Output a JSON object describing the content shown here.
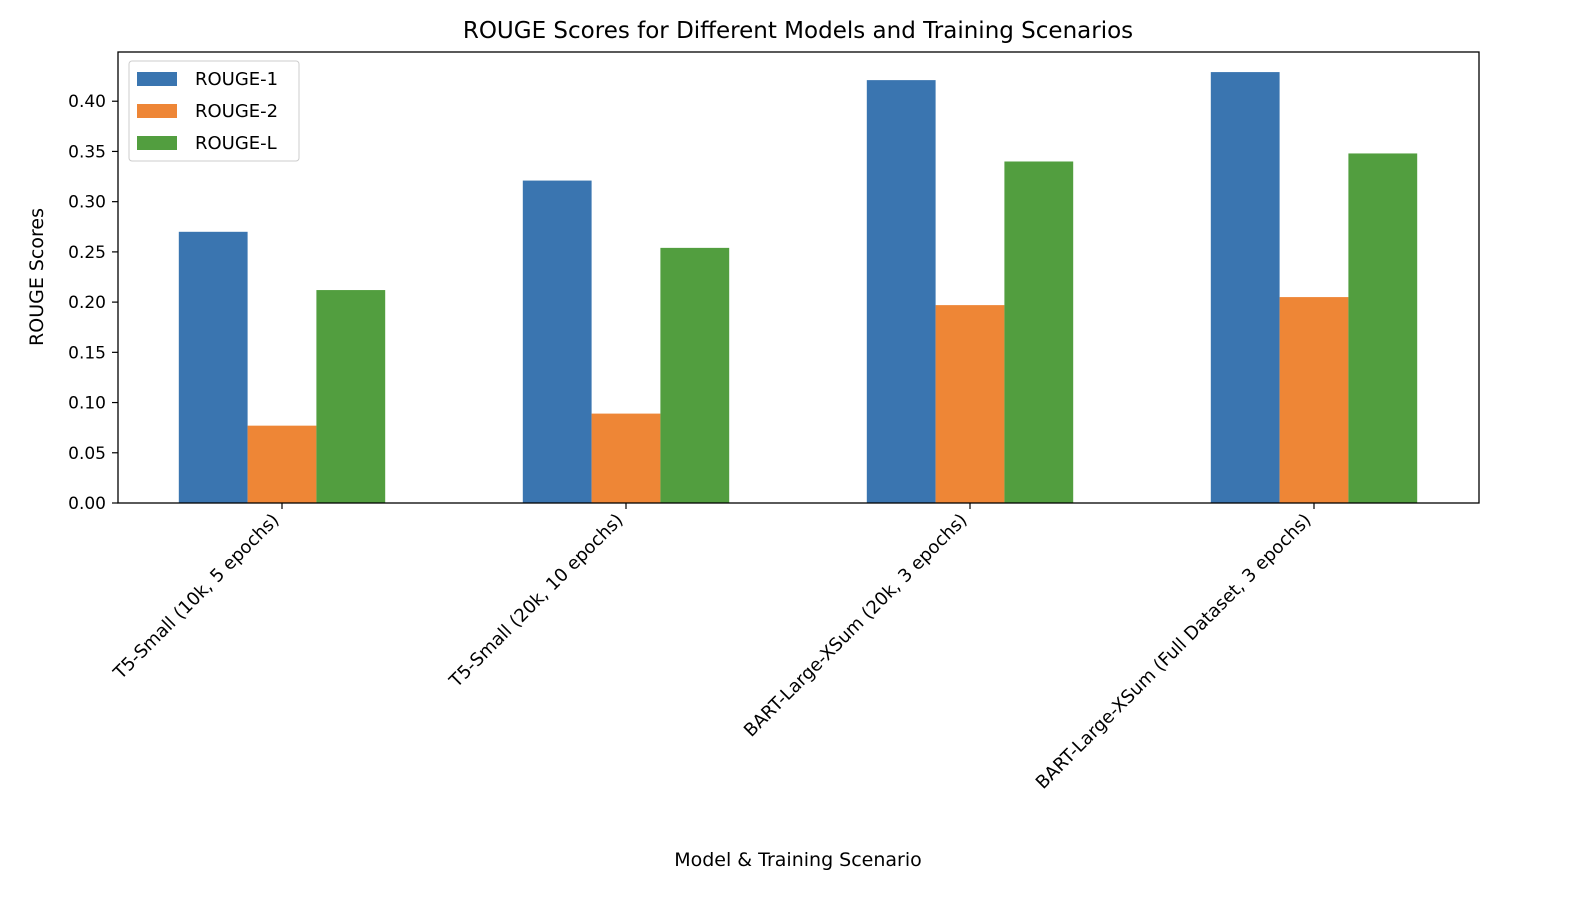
{
  "chart_data": {
    "type": "bar",
    "title": "ROUGE Scores for Different Models and Training Scenarios",
    "xlabel": "Model & Training Scenario",
    "ylabel": "ROUGE Scores",
    "categories": [
      "T5-Small (10k, 5 epochs)",
      "T5-Small (20k, 10 epochs)",
      "BART-Large-XSum (20k, 3 epochs)",
      "BART-Large-XSum (Full Dataset, 3 epochs)"
    ],
    "series": [
      {
        "name": "ROUGE-1",
        "color": "#3a75b0",
        "values": [
          0.27,
          0.321,
          0.421,
          0.429
        ]
      },
      {
        "name": "ROUGE-2",
        "color": "#ee8636",
        "values": [
          0.077,
          0.089,
          0.197,
          0.205
        ]
      },
      {
        "name": "ROUGE-L",
        "color": "#529e3f",
        "values": [
          0.212,
          0.254,
          0.34,
          0.348
        ]
      }
    ],
    "ylim": [
      0,
      0.449
    ],
    "yticks": [
      "0.00",
      "0.05",
      "0.10",
      "0.15",
      "0.20",
      "0.25",
      "0.30",
      "0.35",
      "0.40"
    ],
    "legend_position": "top-left",
    "grid": false
  }
}
